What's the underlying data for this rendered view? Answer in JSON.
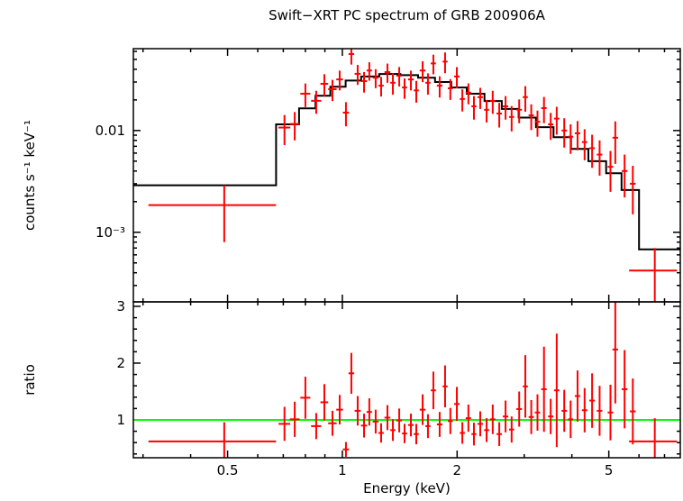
{
  "chart_data": {
    "type": "scatter",
    "title": "Swift−XRT PC spectrum of GRB 200906A",
    "colors": {
      "data": "#ff0000",
      "model": "#000000",
      "ratio_line": "#00ff00",
      "axis": "#000000",
      "background": "#ffffff"
    },
    "x_axis": {
      "label": "Energy (keV)",
      "scale": "log",
      "range": [
        0.283,
        7.7
      ],
      "ticks": [
        {
          "value": 0.5,
          "label": "0.5"
        },
        {
          "value": 1,
          "label": "1"
        },
        {
          "value": 2,
          "label": "2"
        },
        {
          "value": 5,
          "label": "5"
        }
      ],
      "minor_ticks": [
        0.3,
        0.4,
        0.6,
        0.7,
        0.8,
        0.9,
        3,
        4,
        6,
        7
      ]
    },
    "spectrum_panel": {
      "y_label": "counts s⁻¹ keV⁻¹",
      "y_scale": "log",
      "y_range": [
        0.000207,
        0.0638
      ],
      "y_ticks": [
        {
          "value": 0.001,
          "label": "10⁻³"
        },
        {
          "value": 0.01,
          "label": "0.01"
        }
      ],
      "y_minor_ticks": [
        0.0003,
        0.0004,
        0.0005,
        0.0006,
        0.0007,
        0.0008,
        0.0009,
        0.002,
        0.003,
        0.004,
        0.005,
        0.006,
        0.007,
        0.008,
        0.009,
        0.02,
        0.03,
        0.04,
        0.05,
        0.06
      ],
      "model_step_bins": [
        [
          0.283,
          0.67,
          0.0029
        ],
        [
          0.67,
          0.77,
          0.0115
        ],
        [
          0.77,
          0.85,
          0.0165
        ],
        [
          0.85,
          0.93,
          0.022
        ],
        [
          0.93,
          1.02,
          0.027
        ],
        [
          1.02,
          1.12,
          0.031
        ],
        [
          1.12,
          1.25,
          0.034
        ],
        [
          1.25,
          1.42,
          0.036
        ],
        [
          1.42,
          1.58,
          0.035
        ],
        [
          1.58,
          1.75,
          0.033
        ],
        [
          1.75,
          1.93,
          0.03
        ],
        [
          1.93,
          2.12,
          0.0265
        ],
        [
          2.12,
          2.36,
          0.023
        ],
        [
          2.36,
          2.62,
          0.0195
        ],
        [
          2.62,
          2.9,
          0.0163
        ],
        [
          2.9,
          3.22,
          0.0134
        ],
        [
          3.22,
          3.58,
          0.0108
        ],
        [
          3.58,
          3.98,
          0.0086
        ],
        [
          3.98,
          4.42,
          0.0066
        ],
        [
          4.42,
          4.92,
          0.005
        ],
        [
          4.92,
          5.4,
          0.0038
        ],
        [
          5.4,
          6.0,
          0.0026
        ],
        [
          6.0,
          7.7,
          0.00068
        ]
      ],
      "points": [
        [
          0.49,
          0.18,
          0.00185,
          0.00105
        ],
        [
          0.705,
          0.025,
          0.0107,
          0.0035
        ],
        [
          0.75,
          0.022,
          0.0116,
          0.0036
        ],
        [
          0.8,
          0.024,
          0.023,
          0.006
        ],
        [
          0.854,
          0.026,
          0.0196,
          0.005
        ],
        [
          0.897,
          0.021,
          0.0288,
          0.007
        ],
        [
          0.942,
          0.024,
          0.0255,
          0.006
        ],
        [
          0.984,
          0.02,
          0.0318,
          0.007
        ],
        [
          1.022,
          0.019,
          0.015,
          0.004
        ],
        [
          1.056,
          0.018,
          0.0565,
          0.012
        ],
        [
          1.097,
          0.02,
          0.0361,
          0.008
        ],
        [
          1.14,
          0.021,
          0.0306,
          0.007
        ],
        [
          1.177,
          0.019,
          0.0389,
          0.008
        ],
        [
          1.223,
          0.022,
          0.0331,
          0.007
        ],
        [
          1.264,
          0.02,
          0.0276,
          0.006
        ],
        [
          1.313,
          0.023,
          0.0375,
          0.008
        ],
        [
          1.357,
          0.021,
          0.0295,
          0.007
        ],
        [
          1.41,
          0.024,
          0.0346,
          0.0075
        ],
        [
          1.456,
          0.022,
          0.0265,
          0.006
        ],
        [
          1.513,
          0.026,
          0.0318,
          0.007
        ],
        [
          1.563,
          0.024,
          0.0248,
          0.006
        ],
        [
          1.624,
          0.028,
          0.0389,
          0.009
        ],
        [
          1.677,
          0.026,
          0.0295,
          0.007
        ],
        [
          1.733,
          0.027,
          0.0457,
          0.01
        ],
        [
          1.8,
          0.03,
          0.0276,
          0.0065
        ],
        [
          1.86,
          0.028,
          0.0476,
          0.011
        ],
        [
          1.92,
          0.029,
          0.026,
          0.006
        ],
        [
          1.997,
          0.033,
          0.034,
          0.008
        ],
        [
          2.064,
          0.031,
          0.0204,
          0.005
        ],
        [
          2.141,
          0.035,
          0.0236,
          0.0055
        ],
        [
          2.214,
          0.033,
          0.0173,
          0.0045
        ],
        [
          2.3,
          0.038,
          0.0213,
          0.005
        ],
        [
          2.39,
          0.036,
          0.016,
          0.004
        ],
        [
          2.48,
          0.04,
          0.0196,
          0.005
        ],
        [
          2.58,
          0.042,
          0.0147,
          0.004
        ],
        [
          2.68,
          0.044,
          0.0173,
          0.0045
        ],
        [
          2.78,
          0.043,
          0.0136,
          0.0038
        ],
        [
          2.91,
          0.048,
          0.016,
          0.0042
        ],
        [
          3.02,
          0.046,
          0.0213,
          0.006
        ],
        [
          3.13,
          0.05,
          0.0141,
          0.004
        ],
        [
          3.25,
          0.052,
          0.0122,
          0.0035
        ],
        [
          3.38,
          0.055,
          0.0166,
          0.0048
        ],
        [
          3.52,
          0.056,
          0.0115,
          0.0034
        ],
        [
          3.65,
          0.058,
          0.0131,
          0.004
        ],
        [
          3.82,
          0.062,
          0.01,
          0.0032
        ],
        [
          3.97,
          0.06,
          0.0087,
          0.0028
        ],
        [
          4.14,
          0.068,
          0.0094,
          0.003
        ],
        [
          4.32,
          0.07,
          0.0077,
          0.0026
        ],
        [
          4.52,
          0.075,
          0.0067,
          0.0024
        ],
        [
          4.73,
          0.078,
          0.0058,
          0.0022
        ],
        [
          5.05,
          0.085,
          0.0044,
          0.0019
        ],
        [
          5.2,
          0.088,
          0.0085,
          0.0038
        ],
        [
          5.5,
          0.095,
          0.004,
          0.0018
        ],
        [
          5.78,
          0.1,
          0.003,
          0.0015
        ],
        [
          6.6,
          0.95,
          0.00042,
          0.00028
        ]
      ]
    },
    "ratio_panel": {
      "y_label": "ratio",
      "y_scale": "linear",
      "y_range": [
        0.333,
        3.079
      ],
      "reference_line": 1,
      "y_ticks": [
        {
          "value": 1,
          "label": "1"
        },
        {
          "value": 2,
          "label": "2"
        },
        {
          "value": 3,
          "label": "3"
        }
      ],
      "y_minor_ticks": [
        0.4,
        0.6,
        0.8,
        1.2,
        1.4,
        1.6,
        1.8,
        2.2,
        2.4,
        2.6,
        2.8
      ],
      "points": [
        [
          0.49,
          0.18,
          0.62,
          0.34
        ],
        [
          0.705,
          0.025,
          0.93,
          0.3
        ],
        [
          0.75,
          0.022,
          1.01,
          0.31
        ],
        [
          0.8,
          0.024,
          1.39,
          0.37
        ],
        [
          0.854,
          0.026,
          0.89,
          0.23
        ],
        [
          0.897,
          0.021,
          1.31,
          0.32
        ],
        [
          0.942,
          0.024,
          0.94,
          0.22
        ],
        [
          0.984,
          0.02,
          1.18,
          0.26
        ],
        [
          1.022,
          0.019,
          0.48,
          0.13
        ],
        [
          1.056,
          0.018,
          1.82,
          0.36
        ],
        [
          1.097,
          0.02,
          1.16,
          0.26
        ],
        [
          1.14,
          0.021,
          0.9,
          0.21
        ],
        [
          1.177,
          0.019,
          1.14,
          0.24
        ],
        [
          1.223,
          0.022,
          0.97,
          0.21
        ],
        [
          1.264,
          0.02,
          0.77,
          0.17
        ],
        [
          1.313,
          0.023,
          1.04,
          0.22
        ],
        [
          1.357,
          0.021,
          0.82,
          0.19
        ],
        [
          1.41,
          0.024,
          0.99,
          0.21
        ],
        [
          1.456,
          0.022,
          0.76,
          0.17
        ],
        [
          1.513,
          0.026,
          0.91,
          0.2
        ],
        [
          1.563,
          0.024,
          0.75,
          0.18
        ],
        [
          1.624,
          0.028,
          1.18,
          0.27
        ],
        [
          1.677,
          0.026,
          0.89,
          0.21
        ],
        [
          1.733,
          0.027,
          1.52,
          0.33
        ],
        [
          1.8,
          0.03,
          0.92,
          0.22
        ],
        [
          1.86,
          0.028,
          1.59,
          0.37
        ],
        [
          1.92,
          0.029,
          0.98,
          0.23
        ],
        [
          1.997,
          0.033,
          1.28,
          0.3
        ],
        [
          2.064,
          0.031,
          0.77,
          0.19
        ],
        [
          2.141,
          0.035,
          1.03,
          0.24
        ],
        [
          2.214,
          0.033,
          0.75,
          0.2
        ],
        [
          2.3,
          0.038,
          0.93,
          0.22
        ],
        [
          2.39,
          0.036,
          0.82,
          0.21
        ],
        [
          2.48,
          0.04,
          1.01,
          0.26
        ],
        [
          2.58,
          0.042,
          0.75,
          0.21
        ],
        [
          2.68,
          0.044,
          1.06,
          0.28
        ],
        [
          2.78,
          0.043,
          0.83,
          0.23
        ],
        [
          2.91,
          0.048,
          1.19,
          0.31
        ],
        [
          3.02,
          0.046,
          1.59,
          0.55
        ],
        [
          3.13,
          0.05,
          1.05,
          0.3
        ],
        [
          3.25,
          0.052,
          1.13,
          0.32
        ],
        [
          3.38,
          0.055,
          1.54,
          0.75
        ],
        [
          3.52,
          0.056,
          1.06,
          0.31
        ],
        [
          3.65,
          0.058,
          1.52,
          1.0
        ],
        [
          3.82,
          0.062,
          1.16,
          0.37
        ],
        [
          3.97,
          0.06,
          1.01,
          0.33
        ],
        [
          4.14,
          0.068,
          1.42,
          0.45
        ],
        [
          4.32,
          0.07,
          1.17,
          0.39
        ],
        [
          4.52,
          0.075,
          1.34,
          0.48
        ],
        [
          4.73,
          0.078,
          1.16,
          0.44
        ],
        [
          5.05,
          0.085,
          1.13,
          0.49
        ],
        [
          5.2,
          0.088,
          2.24,
          0.95
        ],
        [
          5.5,
          0.095,
          1.54,
          0.69
        ],
        [
          5.78,
          0.1,
          1.15,
          0.58
        ],
        [
          6.6,
          0.95,
          0.62,
          0.41
        ]
      ]
    }
  }
}
